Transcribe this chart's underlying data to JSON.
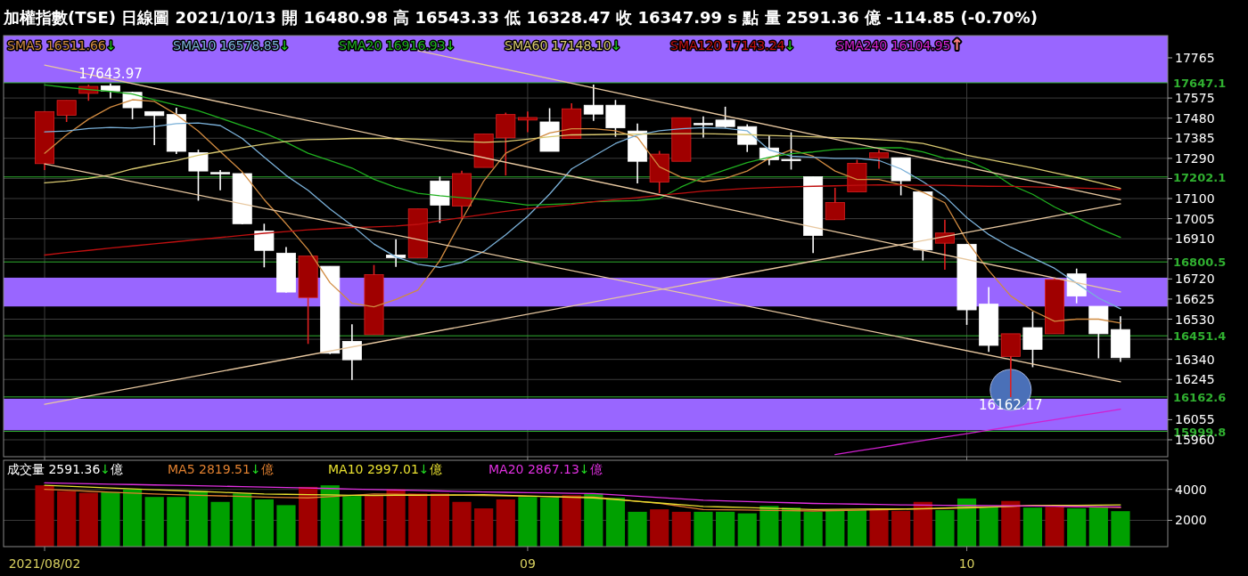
{
  "chart_data": [
    {
      "type": "candlestick",
      "title": "加權指數(TSE)  日線圖  2021/10/13  開 16480.98  高 16543.33  低 16328.47  收 16347.99 s 點  量 2591.36 億  -114.85 (-0.70%)",
      "categories": [
        "2021/08/02",
        null,
        null,
        null,
        null,
        null,
        null,
        null,
        null,
        null,
        null,
        null,
        null,
        null,
        null,
        null,
        null,
        null,
        null,
        null,
        null,
        null,
        "09",
        null,
        null,
        null,
        null,
        null,
        null,
        null,
        null,
        null,
        null,
        null,
        null,
        null,
        null,
        null,
        null,
        null,
        null,
        null,
        "10",
        null,
        null,
        null,
        null,
        null,
        null,
        null
      ],
      "ohlc": [
        [
          17265,
          17511,
          17235,
          17511
        ],
        [
          17494,
          17564,
          17462,
          17564
        ],
        [
          17597,
          17638,
          17562,
          17630
        ],
        [
          17632,
          17643.97,
          17573,
          17608
        ],
        [
          17602,
          17605,
          17475,
          17529
        ],
        [
          17511,
          17511,
          17352,
          17492
        ],
        [
          17497,
          17529,
          17310,
          17323
        ],
        [
          17317,
          17331,
          17090,
          17230
        ],
        [
          17223,
          17235,
          17139,
          17218
        ],
        [
          17218,
          17222,
          16978,
          16981
        ],
        [
          16946,
          16981,
          16775,
          16855
        ],
        [
          16842,
          16871,
          16655,
          16658
        ],
        [
          16632,
          16828,
          16413,
          16828
        ],
        [
          16780,
          16780,
          16365,
          16369
        ],
        [
          16425,
          16506,
          16243,
          16338
        ],
        [
          16457,
          16786,
          16457,
          16740
        ],
        [
          16833,
          16908,
          16777,
          16821
        ],
        [
          16821,
          17051,
          16821,
          17051
        ],
        [
          17183,
          17204,
          16985,
          17069
        ],
        [
          17065,
          17232,
          17002,
          17218
        ],
        [
          17247,
          17405,
          17247,
          17405
        ],
        [
          17387,
          17506,
          17209,
          17497
        ],
        [
          17471,
          17511,
          17413,
          17483
        ],
        [
          17462,
          17527,
          17323,
          17323
        ],
        [
          17384,
          17550,
          17384,
          17524
        ],
        [
          17541,
          17639,
          17467,
          17499
        ],
        [
          17541,
          17566,
          17392,
          17434
        ],
        [
          17419,
          17455,
          17172,
          17276
        ],
        [
          17178,
          17325,
          17125,
          17310
        ],
        [
          17276,
          17482,
          17276,
          17482
        ],
        [
          17455,
          17488,
          17388,
          17451
        ],
        [
          17471,
          17534,
          17434,
          17440
        ],
        [
          17440,
          17451,
          17320,
          17356
        ],
        [
          17339,
          17398,
          17258,
          17283
        ],
        [
          17285,
          17413,
          17237,
          17281
        ],
        [
          17203,
          17203,
          16842,
          16926
        ],
        [
          17000,
          17151,
          17000,
          17081
        ],
        [
          17132,
          17283,
          17132,
          17266
        ],
        [
          17293,
          17329,
          17241,
          17316
        ],
        [
          17293,
          17293,
          17115,
          17184
        ],
        [
          17132,
          17132,
          16807,
          16857
        ],
        [
          16889,
          17000,
          16763,
          16937
        ],
        [
          16884,
          16884,
          16503,
          16574
        ],
        [
          16601,
          16681,
          16375,
          16406
        ],
        [
          16354,
          16461,
          16162.17,
          16461
        ],
        [
          16490,
          16566,
          16303,
          16387
        ],
        [
          16461,
          16727,
          16461,
          16717
        ],
        [
          16744,
          16769,
          16605,
          16639
        ],
        [
          16591,
          16591,
          16345,
          16461
        ],
        [
          16480.98,
          16543.33,
          16328.47,
          16347.99
        ]
      ],
      "colors": [
        "#a00000",
        "#a00000",
        "#a00000",
        "#ffffff",
        "#ffffff",
        "#ffffff",
        "#ffffff",
        "#ffffff",
        "#ffffff",
        "#ffffff",
        "#ffffff",
        "#ffffff",
        "#a00000",
        "#ffffff",
        "#ffffff",
        "#a00000",
        "#ffffff",
        "#a00000",
        "#ffffff",
        "#a00000",
        "#a00000",
        "#a00000",
        "#a00000",
        "#ffffff",
        "#a00000",
        "#ffffff",
        "#ffffff",
        "#ffffff",
        "#a00000",
        "#a00000",
        "#ffffff",
        "#ffffff",
        "#ffffff",
        "#ffffff",
        "#ffffff",
        "#ffffff",
        "#a00000",
        "#a00000",
        "#a00000",
        "#ffffff",
        "#ffffff",
        "#a00000",
        "#ffffff",
        "#ffffff",
        "#a00000",
        "#ffffff",
        "#a00000",
        "#ffffff",
        "#ffffff",
        "#ffffff"
      ],
      "series": [
        {
          "type": "line",
          "name": "SMA5 16511.66↓",
          "color": "#d08a40",
          "values": [
            17314,
            17401,
            17475,
            17532,
            17567,
            17559,
            17497,
            17419,
            17322,
            17226,
            17095,
            16981,
            16859,
            16702,
            16605,
            16588,
            16623,
            16667,
            16807,
            16999,
            17183,
            17314,
            17366,
            17410,
            17430,
            17430,
            17420,
            17390,
            17250,
            17200,
            17180,
            17195,
            17230,
            17290,
            17330,
            17300,
            17230,
            17190,
            17190,
            17165,
            17130,
            17080,
            16900,
            16760,
            16640,
            16570,
            16520,
            16530,
            16530,
            16511.66
          ]
        },
        {
          "type": "line",
          "name": "SMA10 16578.85↓",
          "color": "#7ab0d8",
          "values": [
            17415,
            17419,
            17431,
            17436,
            17433,
            17440,
            17454,
            17457,
            17445,
            17384,
            17296,
            17209,
            17139,
            17051,
            16973,
            16885,
            16824,
            16789,
            16775,
            16798,
            16850,
            16929,
            17016,
            17121,
            17240,
            17300,
            17360,
            17400,
            17420,
            17430,
            17435,
            17432,
            17420,
            17330,
            17300,
            17295,
            17290,
            17290,
            17280,
            17240,
            17180,
            17110,
            17010,
            16930,
            16870,
            16820,
            16770,
            16700,
            16630,
            16578.85
          ]
        },
        {
          "type": "line",
          "name": "SMA20 16916.93↓",
          "color": "#20b020",
          "values": [
            17637,
            17625,
            17615,
            17606,
            17594,
            17567,
            17541,
            17515,
            17480,
            17445,
            17410,
            17366,
            17314,
            17279,
            17244,
            17191,
            17153,
            17125,
            17113,
            17104,
            17095,
            17083,
            17069,
            17072,
            17076,
            17085,
            17088,
            17090,
            17100,
            17155,
            17200,
            17235,
            17270,
            17295,
            17312,
            17320,
            17332,
            17336,
            17340,
            17340,
            17320,
            17290,
            17280,
            17235,
            17165,
            17120,
            17060,
            17010,
            16960,
            16916.93
          ]
        },
        {
          "type": "line",
          "name": "SMA60 17148.10↓",
          "color": "#d8c870",
          "values": [
            17174,
            17183,
            17195,
            17212,
            17240,
            17261,
            17279,
            17305,
            17322,
            17340,
            17357,
            17370,
            17378,
            17380,
            17384,
            17384,
            17384,
            17380,
            17375,
            17370,
            17366,
            17370,
            17380,
            17392,
            17401,
            17402,
            17404,
            17405,
            17406,
            17407,
            17407,
            17405,
            17402,
            17398,
            17395,
            17392,
            17388,
            17384,
            17378,
            17372,
            17360,
            17335,
            17305,
            17285,
            17265,
            17245,
            17222,
            17200,
            17175,
            17148.1
          ]
        },
        {
          "type": "line",
          "name": "SMA120 17143.24↓",
          "color": "#c01010",
          "values": [
            16833,
            16845,
            16855,
            16866,
            16876,
            16886,
            16896,
            16906,
            16916,
            16926,
            16936,
            16944,
            16952,
            16958,
            16963,
            16966,
            16970,
            16978,
            16995,
            17010,
            17025,
            17040,
            17052,
            17062,
            17072,
            17085,
            17095,
            17105,
            17115,
            17125,
            17135,
            17142,
            17148,
            17152,
            17155,
            17158,
            17160,
            17163,
            17165,
            17164,
            17163,
            17163,
            17160,
            17158,
            17157,
            17155,
            17152,
            17150,
            17147,
            17143.24
          ]
        },
        {
          "type": "line",
          "name": "SMA240 16104.95↑",
          "color": "#d020d0",
          "values": [
            null,
            null,
            null,
            null,
            null,
            null,
            null,
            null,
            null,
            null,
            null,
            null,
            null,
            null,
            null,
            null,
            null,
            null,
            null,
            null,
            null,
            null,
            null,
            null,
            null,
            null,
            null,
            null,
            null,
            null,
            null,
            null,
            null,
            null,
            null,
            null,
            15890,
            15907,
            15923,
            15940,
            15956,
            15973,
            15989,
            16006,
            16022,
            16039,
            16055,
            16072,
            16088,
            16104.95
          ]
        },
        {
          "type": "line",
          "color": "#e8c8a0",
          "values": [
            null,
            null,
            null,
            null,
            null,
            null,
            null,
            null,
            null,
            null,
            null,
            null,
            null,
            null,
            null,
            null,
            null,
            17799,
            null,
            null,
            null,
            null,
            null,
            null,
            null,
            null,
            null,
            null,
            null,
            null,
            null,
            null,
            null,
            null,
            null,
            null,
            null,
            null,
            null,
            null,
            null,
            null,
            null,
            null,
            null,
            null,
            null,
            null,
            null,
            17094
          ]
        },
        {
          "type": "line",
          "color": "#e8c8a0",
          "values": [
            17731,
            null,
            null,
            null,
            null,
            null,
            null,
            null,
            null,
            null,
            null,
            null,
            null,
            null,
            null,
            null,
            null,
            null,
            null,
            null,
            null,
            null,
            null,
            null,
            null,
            null,
            null,
            null,
            null,
            null,
            null,
            null,
            null,
            null,
            null,
            null,
            null,
            null,
            null,
            null,
            null,
            null,
            null,
            null,
            null,
            null,
            null,
            null,
            null,
            16659
          ]
        },
        {
          "type": "line",
          "color": "#e8c8a0",
          "values": [
            17264,
            null,
            null,
            null,
            null,
            null,
            null,
            null,
            null,
            null,
            null,
            null,
            null,
            null,
            null,
            null,
            null,
            null,
            null,
            null,
            null,
            null,
            null,
            null,
            null,
            null,
            null,
            null,
            null,
            null,
            null,
            null,
            null,
            null,
            null,
            null,
            null,
            null,
            null,
            null,
            null,
            null,
            null,
            null,
            null,
            null,
            null,
            null,
            null,
            16234
          ]
        },
        {
          "type": "line",
          "color": "#e8c8a0",
          "values": [
            16128,
            null,
            null,
            null,
            null,
            null,
            null,
            null,
            null,
            null,
            null,
            null,
            null,
            null,
            null,
            null,
            null,
            null,
            null,
            null,
            null,
            null,
            null,
            null,
            null,
            null,
            null,
            null,
            null,
            null,
            null,
            null,
            null,
            null,
            null,
            null,
            null,
            null,
            null,
            null,
            null,
            null,
            null,
            null,
            null,
            null,
            null,
            null,
            null,
            17075
          ]
        }
      ],
      "ylim": [
        15880,
        17870
      ],
      "yticks": [
        17765,
        17575,
        17480,
        17385,
        17290,
        {
          "value": 17195,
          "label": null
        },
        17100,
        17005,
        16910,
        {
          "value": 16815,
          "label": null
        },
        16720,
        16625,
        16530,
        {
          "value": 16435,
          "label": null
        },
        16340,
        16245,
        16055,
        15960
      ],
      "tick_labels": "y",
      "grid": true,
      "legend": "top",
      "bands": [
        {
          "axis": "y",
          "from": 17647.1,
          "to": 17870,
          "color": "#9966ff"
        },
        {
          "axis": "y",
          "from": 16590,
          "to": 16726,
          "color": "#9966ff"
        },
        {
          "axis": "y",
          "from": 16005,
          "to": 16154,
          "color": "#9966ff"
        }
      ],
      "ref_lines": [
        {
          "axis": "y",
          "value": 17647.1,
          "label": "17647.1",
          "color": "#30b030"
        },
        {
          "axis": "y",
          "value": 17202.1,
          "label": "17202.1",
          "color": "#30b030"
        },
        {
          "axis": "y",
          "value": 16800.5,
          "label": "16800.5",
          "color": "#30b030"
        },
        {
          "axis": "y",
          "value": 16451.4,
          "label": "16451.4",
          "color": "#30b030"
        },
        {
          "axis": "y",
          "value": 16162.6,
          "label": "16162.6",
          "color": "#30b030"
        },
        {
          "axis": "y",
          "value": 15999.8,
          "label": "15999.8",
          "color": "#30b030"
        }
      ],
      "annotations": [
        {
          "text": "17643.97",
          "y": 17643.97
        },
        {
          "text": "16162.17",
          "y": 16162.17
        }
      ]
    },
    {
      "type": "bar",
      "title": "成交量 2591.36↓億",
      "categories": [
        "2021/08/02",
        null,
        null,
        null,
        null,
        null,
        null,
        null,
        null,
        null,
        null,
        null,
        null,
        null,
        null,
        null,
        null,
        null,
        null,
        null,
        null,
        null,
        "09",
        null,
        null,
        null,
        null,
        null,
        null,
        null,
        null,
        null,
        null,
        null,
        null,
        null,
        null,
        null,
        null,
        null,
        null,
        null,
        "10",
        null,
        null,
        null,
        null,
        null,
        null,
        null
      ],
      "values": [
        4260,
        3890,
        3780,
        3830,
        4000,
        3510,
        3510,
        3890,
        3190,
        3730,
        3350,
        2980,
        4160,
        4260,
        3570,
        3570,
        4000,
        3730,
        3730,
        3190,
        2770,
        3350,
        3510,
        3460,
        3620,
        3730,
        3460,
        2550,
        2710,
        2550,
        2550,
        2550,
        2450,
        2930,
        2820,
        2550,
        2660,
        2660,
        2710,
        2610,
        3190,
        2660,
        3410,
        2870,
        3250,
        2820,
        2870,
        2770,
        2820,
        2591.36
      ],
      "colors": [
        "#a00000",
        "#a00000",
        "#a00000",
        "#00a000",
        "#00a000",
        "#00a000",
        "#00a000",
        "#00a000",
        "#00a000",
        "#00a000",
        "#00a000",
        "#00a000",
        "#a00000",
        "#00a000",
        "#00a000",
        "#a00000",
        "#a00000",
        "#a00000",
        "#a00000",
        "#a00000",
        "#a00000",
        "#a00000",
        "#00a000",
        "#00a000",
        "#a00000",
        "#00a000",
        "#00a000",
        "#00a000",
        "#a00000",
        "#a00000",
        "#00a000",
        "#00a000",
        "#00a000",
        "#00a000",
        "#00a000",
        "#00a000",
        "#00a000",
        "#00a000",
        "#a00000",
        "#a00000",
        "#a00000",
        "#00a000",
        "#00a000",
        "#00a000",
        "#a00000",
        "#00a000",
        "#a00000",
        "#00a000",
        "#00a000",
        "#00a000"
      ],
      "series": [
        {
          "type": "line",
          "name": "MA5 2819.51↓億",
          "color": "#e08030",
          "values": [
            4000,
            3940,
            3880,
            3820,
            3760,
            3700,
            3660,
            3620,
            3580,
            3540,
            3500,
            3475,
            3450,
            3530,
            3620,
            3700,
            3680,
            3660,
            3640,
            3620,
            3600,
            3580,
            3560,
            3540,
            3520,
            3500,
            3370,
            3230,
            3100,
            2900,
            2700,
            2680,
            2660,
            2640,
            2620,
            2600,
            2630,
            2650,
            2680,
            2710,
            2740,
            2770,
            2800,
            2850,
            2900,
            2950,
            2920,
            2880,
            2850,
            2819.51
          ]
        },
        {
          "type": "line",
          "name": "MA10 2997.01↓億",
          "color": "#e8e030",
          "values": [
            4260,
            4204,
            4148,
            4092,
            4036,
            3980,
            3924,
            3868,
            3812,
            3756,
            3700,
            3680,
            3660,
            3640,
            3620,
            3600,
            3610,
            3620,
            3630,
            3640,
            3650,
            3610,
            3570,
            3530,
            3490,
            3450,
            3340,
            3230,
            3120,
            3010,
            2900,
            2860,
            2820,
            2780,
            2740,
            2700,
            2710,
            2720,
            2730,
            2740,
            2750,
            2790,
            2830,
            2870,
            2910,
            2950,
            2960,
            2970,
            2985,
            2997.01
          ]
        },
        {
          "type": "line",
          "name": "MA20 2867.13↓億",
          "color": "#e030e0",
          "values": [
            4420,
            4393,
            4366,
            4339,
            4312,
            4285,
            4258,
            4231,
            4204,
            4177,
            4150,
            4118,
            4086,
            4054,
            4022,
            3990,
            3958,
            3926,
            3894,
            3862,
            3830,
            3810,
            3790,
            3770,
            3750,
            3730,
            3644,
            3558,
            3472,
            3386,
            3300,
            3258,
            3216,
            3174,
            3132,
            3090,
            3068,
            3046,
            3024,
            3002,
            2980,
            2970,
            2960,
            2950,
            2940,
            2930,
            2910,
            2890,
            2880,
            2867.13
          ]
        }
      ],
      "ylim": [
        300,
        5880
      ],
      "yticks": [
        2000,
        4000
      ],
      "grid": "y",
      "legend": "top left"
    }
  ]
}
